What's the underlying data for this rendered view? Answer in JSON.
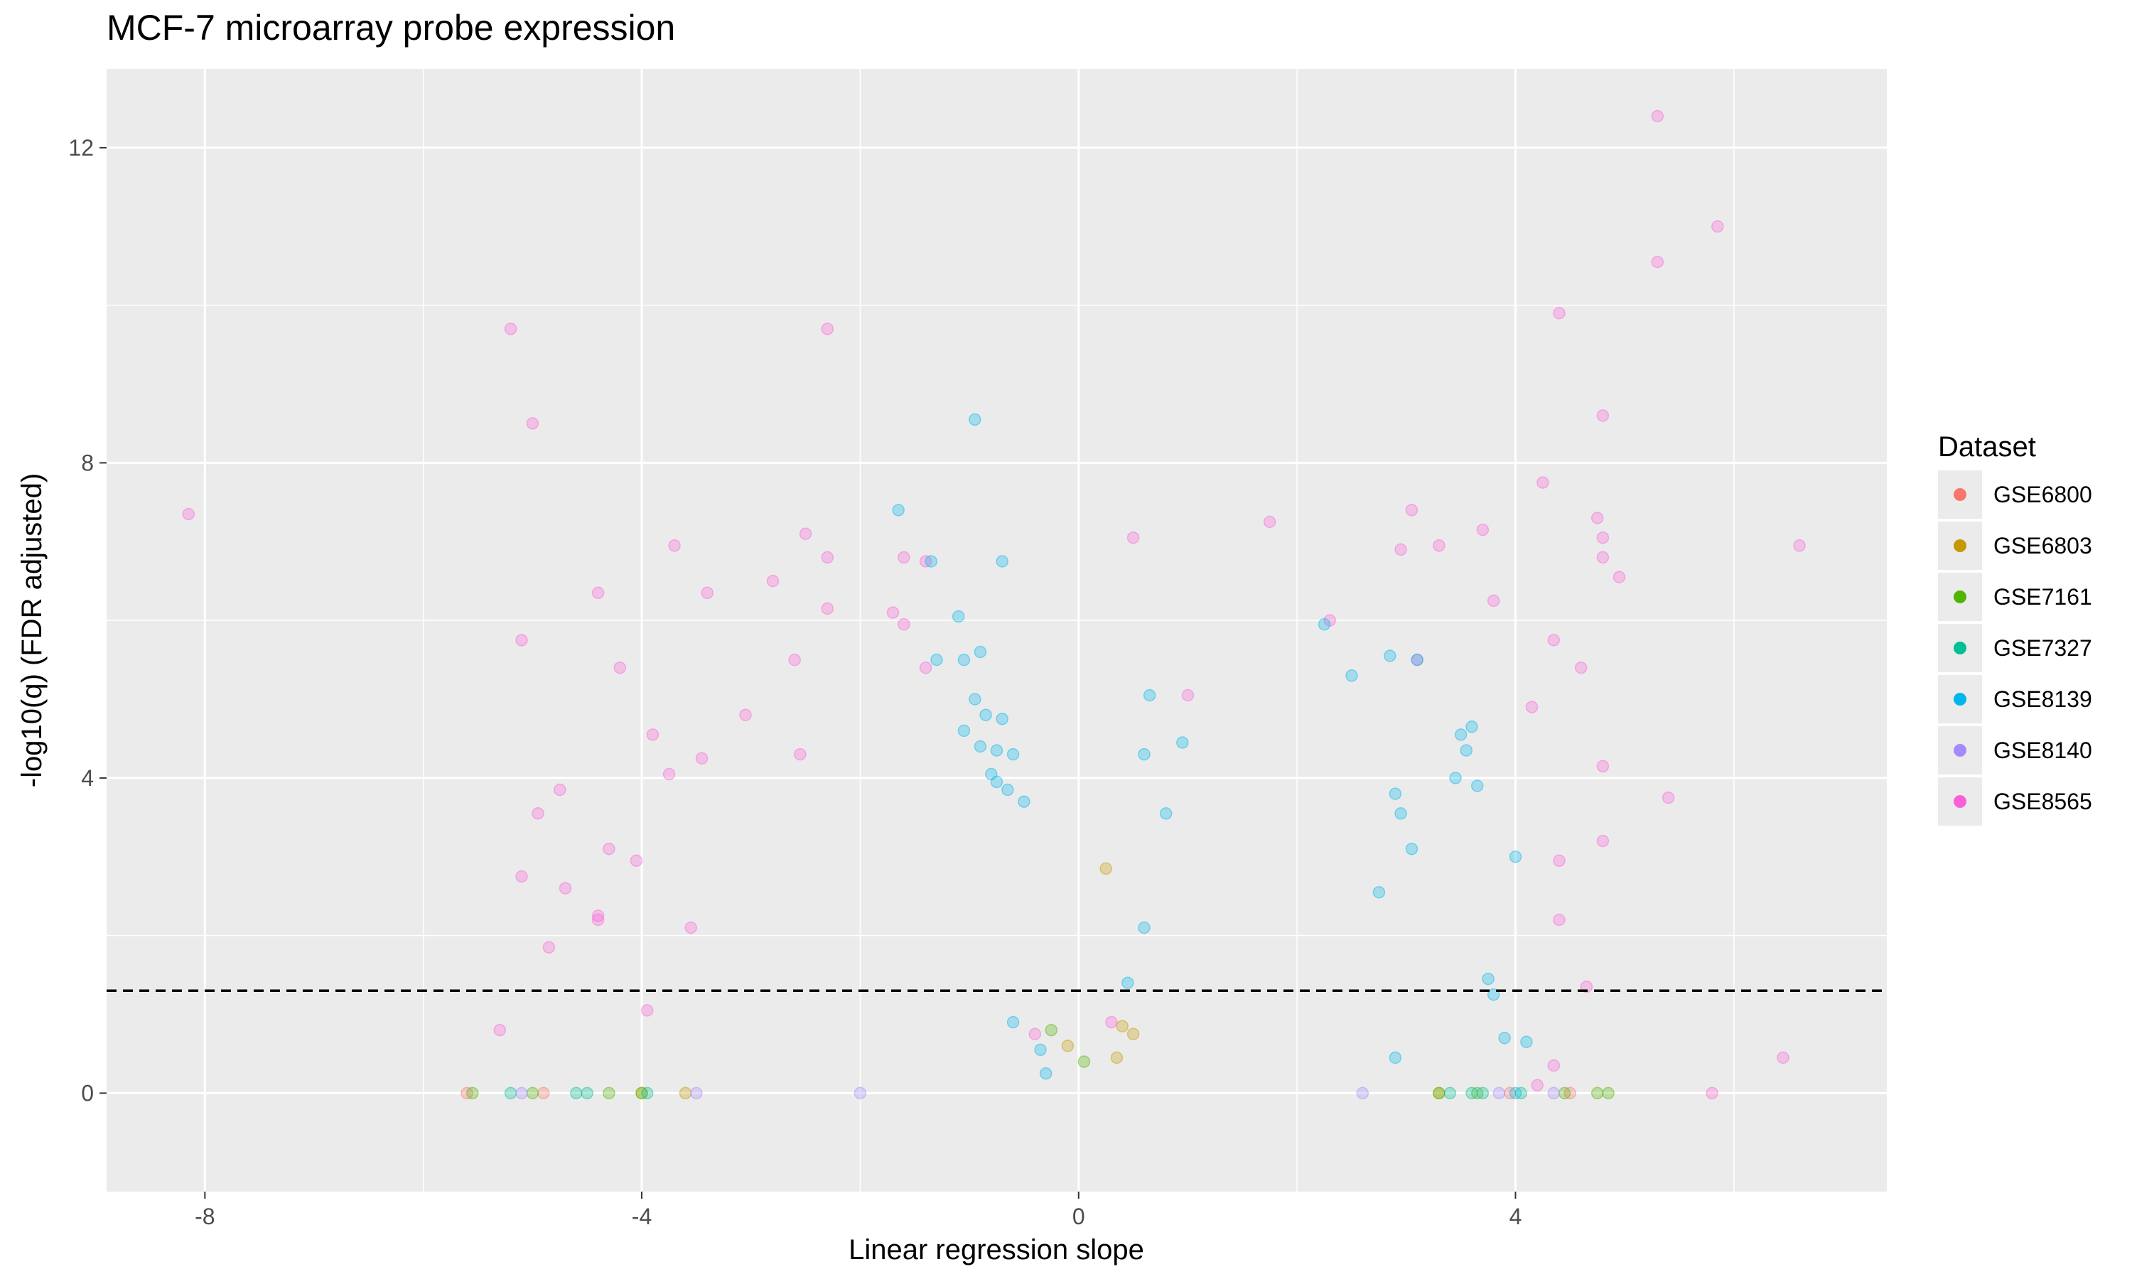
{
  "chart_data": {
    "type": "scatter",
    "title": "MCF-7 microarray probe expression",
    "xlabel": "Linear regression slope",
    "ylabel": "-log10(q) (FDR adjusted)",
    "xlim": [
      -8.9,
      7.4
    ],
    "ylim": [
      -1.25,
      13.0
    ],
    "x_ticks": [
      -8,
      -4,
      0,
      4
    ],
    "y_ticks": [
      0,
      4,
      8,
      12
    ],
    "grid": true,
    "threshold_line": {
      "y": 1.3,
      "style": "dashed"
    },
    "legend": {
      "title": "Dataset",
      "position": "right",
      "entries": [
        {
          "name": "GSE6800",
          "color": "#F8766D"
        },
        {
          "name": "GSE6803",
          "color": "#C49A00"
        },
        {
          "name": "GSE7161",
          "color": "#53B400"
        },
        {
          "name": "GSE7327",
          "color": "#00C094"
        },
        {
          "name": "GSE8139",
          "color": "#00B6EB"
        },
        {
          "name": "GSE8140",
          "color": "#A58AFF"
        },
        {
          "name": "GSE8565",
          "color": "#FB61D7"
        }
      ]
    },
    "series": [
      {
        "name": "GSE8565",
        "points": [
          [
            -8.15,
            7.35
          ],
          [
            -5.2,
            9.7
          ],
          [
            -5.0,
            8.5
          ],
          [
            -5.1,
            5.75
          ],
          [
            -2.3,
            9.7
          ],
          [
            5.3,
            12.4
          ],
          [
            5.85,
            11.0
          ],
          [
            5.3,
            10.55
          ],
          [
            4.4,
            9.9
          ],
          [
            4.8,
            8.6
          ],
          [
            4.25,
            7.75
          ],
          [
            4.75,
            7.3
          ],
          [
            4.8,
            7.05
          ],
          [
            4.8,
            6.8
          ],
          [
            4.95,
            6.55
          ],
          [
            6.6,
            6.95
          ],
          [
            3.7,
            7.15
          ],
          [
            3.3,
            6.95
          ],
          [
            3.8,
            6.25
          ],
          [
            3.05,
            7.4
          ],
          [
            2.95,
            6.9
          ],
          [
            1.75,
            7.25
          ],
          [
            0.5,
            7.05
          ],
          [
            -2.5,
            7.1
          ],
          [
            -3.7,
            6.95
          ],
          [
            -1.6,
            6.8
          ],
          [
            -1.4,
            6.75
          ],
          [
            -2.3,
            6.8
          ],
          [
            -2.8,
            6.5
          ],
          [
            -4.4,
            6.35
          ],
          [
            -3.4,
            6.35
          ],
          [
            -1.7,
            6.1
          ],
          [
            -1.6,
            5.95
          ],
          [
            -2.3,
            6.15
          ],
          [
            -4.2,
            5.4
          ],
          [
            -2.6,
            5.5
          ],
          [
            -1.4,
            5.4
          ],
          [
            1.0,
            5.05
          ],
          [
            2.3,
            6.0
          ],
          [
            3.1,
            5.5
          ],
          [
            4.35,
            5.75
          ],
          [
            4.6,
            5.4
          ],
          [
            4.15,
            4.9
          ],
          [
            5.4,
            3.75
          ],
          [
            4.8,
            4.15
          ],
          [
            4.8,
            3.2
          ],
          [
            4.4,
            2.95
          ],
          [
            4.4,
            2.2
          ],
          [
            6.45,
            0.45
          ],
          [
            5.8,
            0.0
          ],
          [
            -5.3,
            0.8
          ],
          [
            -4.75,
            3.85
          ],
          [
            -4.95,
            3.55
          ],
          [
            -5.1,
            2.75
          ],
          [
            -4.7,
            2.6
          ],
          [
            -4.4,
            2.25
          ],
          [
            -4.3,
            3.1
          ],
          [
            -3.9,
            4.55
          ],
          [
            -3.75,
            4.05
          ],
          [
            -3.45,
            4.25
          ],
          [
            -3.05,
            4.8
          ],
          [
            -2.55,
            4.3
          ],
          [
            -4.85,
            1.85
          ],
          [
            -3.55,
            2.1
          ],
          [
            -4.05,
            2.95
          ],
          [
            -3.95,
            1.05
          ],
          [
            4.65,
            1.35
          ],
          [
            4.35,
            0.35
          ],
          [
            4.2,
            0.1
          ],
          [
            -0.4,
            0.75
          ],
          [
            0.3,
            0.9
          ],
          [
            -4.4,
            2.2
          ]
        ]
      },
      {
        "name": "GSE8139",
        "points": [
          [
            -0.95,
            8.55
          ],
          [
            -1.65,
            7.4
          ],
          [
            -0.7,
            6.75
          ],
          [
            -1.35,
            6.75
          ],
          [
            -1.1,
            6.05
          ],
          [
            -0.9,
            5.6
          ],
          [
            -1.3,
            5.5
          ],
          [
            -1.05,
            5.5
          ],
          [
            -0.95,
            5.0
          ],
          [
            -0.85,
            4.8
          ],
          [
            -0.7,
            4.75
          ],
          [
            -1.05,
            4.6
          ],
          [
            -0.9,
            4.4
          ],
          [
            -0.6,
            4.3
          ],
          [
            -0.75,
            4.35
          ],
          [
            -0.8,
            4.05
          ],
          [
            -0.75,
            3.95
          ],
          [
            -0.65,
            3.85
          ],
          [
            -0.5,
            3.7
          ],
          [
            2.25,
            5.95
          ],
          [
            2.85,
            5.55
          ],
          [
            3.1,
            5.5
          ],
          [
            2.5,
            5.3
          ],
          [
            0.65,
            5.05
          ],
          [
            0.95,
            4.45
          ],
          [
            0.6,
            4.3
          ],
          [
            3.5,
            4.55
          ],
          [
            3.6,
            4.65
          ],
          [
            3.55,
            4.35
          ],
          [
            3.65,
            3.9
          ],
          [
            3.45,
            4.0
          ],
          [
            2.9,
            3.8
          ],
          [
            2.95,
            3.55
          ],
          [
            3.05,
            3.1
          ],
          [
            2.75,
            2.55
          ],
          [
            4.0,
            3.0
          ],
          [
            3.75,
            1.45
          ],
          [
            3.8,
            1.25
          ],
          [
            3.9,
            0.7
          ],
          [
            4.1,
            0.65
          ],
          [
            2.9,
            0.45
          ],
          [
            -0.6,
            0.9
          ],
          [
            -0.35,
            0.55
          ],
          [
            0.6,
            2.1
          ],
          [
            0.8,
            3.55
          ],
          [
            0.45,
            1.4
          ],
          [
            4.0,
            0.0
          ],
          [
            -0.3,
            0.25
          ]
        ]
      },
      {
        "name": "GSE7161",
        "points": [
          [
            -5.55,
            0.0
          ],
          [
            -5.0,
            0.0
          ],
          [
            -4.3,
            0.0
          ],
          [
            -4.0,
            0.0
          ],
          [
            4.75,
            0.0
          ],
          [
            4.85,
            0.0
          ],
          [
            4.45,
            0.0
          ],
          [
            3.65,
            0.0
          ],
          [
            -0.25,
            0.8
          ],
          [
            0.05,
            0.4
          ],
          [
            3.3,
            0.0
          ]
        ]
      },
      {
        "name": "GSE7327",
        "points": [
          [
            -5.2,
            0.0
          ],
          [
            -4.6,
            0.0
          ],
          [
            -4.5,
            0.0
          ],
          [
            -3.95,
            0.0
          ],
          [
            3.4,
            0.0
          ],
          [
            3.6,
            0.0
          ],
          [
            4.05,
            0.0
          ],
          [
            3.7,
            0.0
          ]
        ]
      },
      {
        "name": "GSE6803",
        "points": [
          [
            0.25,
            2.85
          ],
          [
            0.4,
            0.85
          ],
          [
            0.5,
            0.75
          ],
          [
            -0.1,
            0.6
          ],
          [
            0.35,
            0.45
          ],
          [
            3.3,
            0.0
          ],
          [
            -4.0,
            0.0
          ],
          [
            -3.6,
            0.0
          ]
        ]
      },
      {
        "name": "GSE8140",
        "points": [
          [
            -5.1,
            0.0
          ],
          [
            4.35,
            0.0
          ],
          [
            3.85,
            0.0
          ],
          [
            -3.5,
            0.0
          ],
          [
            2.6,
            0.0
          ],
          [
            -2.0,
            0.0
          ]
        ]
      },
      {
        "name": "GSE6800",
        "points": [
          [
            -5.6,
            0.0
          ],
          [
            -4.9,
            0.0
          ],
          [
            4.5,
            0.0
          ],
          [
            3.95,
            0.0
          ]
        ]
      }
    ]
  }
}
